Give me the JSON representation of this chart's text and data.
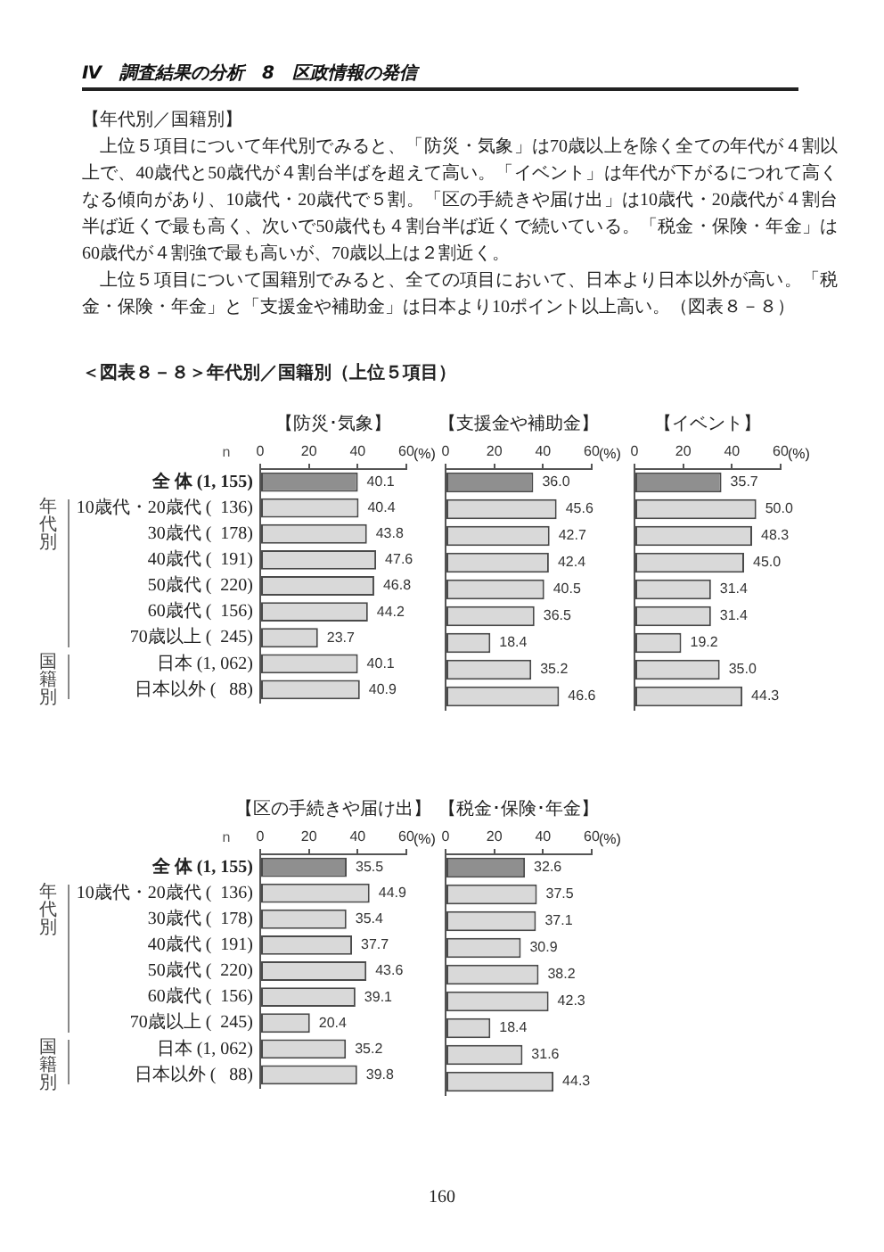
{
  "chart_data": [
    {
      "type": "other",
      "title": "Ⅳ　調査結果の分析　8　区政情報の発信",
      "subtitle": "【年代別／国籍別】",
      "annotations": [
        "上位５項目について年代別でみると、「防災・気象」は70歳以上を除く全ての年代が４割以上で、40歳代と50歳代が４割台半ばを超えて高い。「イベント」は年代が下がるにつれて高くなる傾向があり、10歳代・20歳代で５割。「区の手続きや届け出」は10歳代・20歳代が４割台半ば近くで最も高く、次いで50歳代も４割台半ば近くで続いている。「税金・保険・年金」は60歳代が４割強で最も高いが、70歳以上は２割近く。",
        "上位５項目について国籍別でみると、全ての項目において、日本より日本以外が高い。「税金・保険・年金」と「支援金や補助金」は日本より10ポイント以上高い。（図表８－８）",
        "＜図表８－８＞年代別／国籍別（上位５項目）",
        "160"
      ]
    },
    {
      "type": "bar",
      "orientation": "horizontal",
      "title": "【防災･気象】",
      "xlabel": "(%)",
      "categories": [
        "全 体 (1, 155)",
        "10歳代・20歳代 (  136)",
        "30歳代 (  178)",
        "40歳代 (  191)",
        "50歳代 (  220)",
        "60歳代 (  156)",
        "70歳以上 (  245)",
        "日本 (1, 062)",
        "日本以外 (   88)"
      ],
      "values": [
        40.1,
        40.4,
        43.8,
        47.6,
        46.8,
        44.2,
        23.7,
        40.1,
        40.9
      ],
      "colors": [
        "#8f8f8f",
        "#d9d9d9",
        "#d9d9d9",
        "#d9d9d9",
        "#d9d9d9",
        "#d9d9d9",
        "#d9d9d9",
        "#d9d9d9",
        "#d9d9d9"
      ],
      "value_labels": [
        "40.1",
        "40.4",
        "43.8",
        "47.6",
        "46.8",
        "44.2",
        "23.7",
        "40.1",
        "40.9"
      ],
      "xlim": [
        0,
        60
      ],
      "xticks": [
        0,
        20,
        40,
        60
      ],
      "annotations": [
        "n",
        "年代別",
        "国籍別"
      ]
    },
    {
      "type": "bar",
      "orientation": "horizontal",
      "title": "【支援金や補助金】",
      "xlabel": "(%)",
      "categories": [
        null,
        null,
        null,
        null,
        null,
        null,
        null,
        null,
        null
      ],
      "values": [
        36.0,
        45.6,
        42.7,
        42.4,
        40.5,
        36.5,
        18.4,
        35.2,
        46.6
      ],
      "colors": [
        "#8f8f8f",
        "#d9d9d9",
        "#d9d9d9",
        "#d9d9d9",
        "#d9d9d9",
        "#d9d9d9",
        "#d9d9d9",
        "#d9d9d9",
        "#d9d9d9"
      ],
      "value_labels": [
        "36.0",
        "45.6",
        "42.7",
        "42.4",
        "40.5",
        "36.5",
        "18.4",
        "35.2",
        "46.6"
      ],
      "xlim": [
        0,
        60
      ],
      "xticks": [
        0,
        20,
        40,
        60
      ],
      "tick_labels": "x"
    },
    {
      "type": "bar",
      "orientation": "horizontal",
      "title": "【イベント】",
      "xlabel": "(%)",
      "categories": [
        null,
        null,
        null,
        null,
        null,
        null,
        null,
        null,
        null
      ],
      "values": [
        35.7,
        50.0,
        48.3,
        45.0,
        31.4,
        31.4,
        19.2,
        35.0,
        44.3
      ],
      "colors": [
        "#8f8f8f",
        "#d9d9d9",
        "#d9d9d9",
        "#d9d9d9",
        "#d9d9d9",
        "#d9d9d9",
        "#d9d9d9",
        "#d9d9d9",
        "#d9d9d9"
      ],
      "value_labels": [
        "35.7",
        "50.0",
        "48.3",
        "45.0",
        "31.4",
        "31.4",
        "19.2",
        "35.0",
        "44.3"
      ],
      "xlim": [
        0,
        60
      ],
      "xticks": [
        0,
        20,
        40,
        60
      ],
      "tick_labels": "x"
    },
    {
      "type": "bar",
      "orientation": "horizontal",
      "title": "【区の手続きや届け出】",
      "xlabel": "(%)",
      "categories": [
        "全 体 (1, 155)",
        "10歳代・20歳代 (  136)",
        "30歳代 (  178)",
        "40歳代 (  191)",
        "50歳代 (  220)",
        "60歳代 (  156)",
        "70歳以上 (  245)",
        "日本 (1, 062)",
        "日本以外 (   88)"
      ],
      "values": [
        35.5,
        44.9,
        35.4,
        37.7,
        43.6,
        39.1,
        20.4,
        35.2,
        39.8
      ],
      "colors": [
        "#8f8f8f",
        "#d9d9d9",
        "#d9d9d9",
        "#d9d9d9",
        "#d9d9d9",
        "#d9d9d9",
        "#d9d9d9",
        "#d9d9d9",
        "#d9d9d9"
      ],
      "value_labels": [
        "35.5",
        "44.9",
        "35.4",
        "37.7",
        "43.6",
        "39.1",
        "20.4",
        "35.2",
        "39.8"
      ],
      "xlim": [
        0,
        60
      ],
      "xticks": [
        0,
        20,
        40,
        60
      ],
      "annotations": [
        "n",
        "年代別",
        "国籍別"
      ]
    },
    {
      "type": "bar",
      "orientation": "horizontal",
      "title": "【税金･保険･年金】",
      "xlabel": "(%)",
      "categories": [
        null,
        null,
        null,
        null,
        null,
        null,
        null,
        null,
        null
      ],
      "values": [
        32.6,
        37.5,
        37.1,
        30.9,
        38.2,
        42.3,
        18.4,
        31.6,
        44.3
      ],
      "colors": [
        "#8f8f8f",
        "#d9d9d9",
        "#d9d9d9",
        "#d9d9d9",
        "#d9d9d9",
        "#d9d9d9",
        "#d9d9d9",
        "#d9d9d9",
        "#d9d9d9"
      ],
      "value_labels": [
        "32.6",
        "37.5",
        "37.1",
        "30.9",
        "38.2",
        "42.3",
        "18.4",
        "31.6",
        "44.3"
      ],
      "xlim": [
        0,
        60
      ],
      "xticks": [
        0,
        20,
        40,
        60
      ],
      "tick_labels": "x"
    }
  ]
}
